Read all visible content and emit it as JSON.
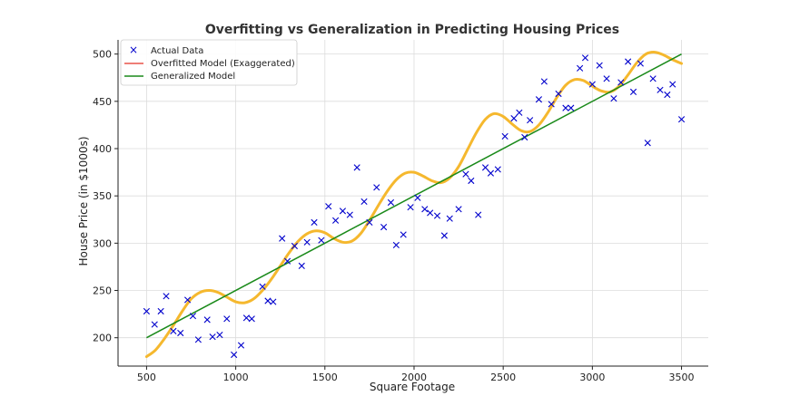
{
  "chart_data": {
    "type": "scatter",
    "title": "Overfitting vs Generalization in Predicting Housing Prices",
    "xlabel": "Square Footage",
    "ylabel": "House Price (in $1000s)",
    "xlim": [
      340,
      3650
    ],
    "ylim": [
      170,
      515
    ],
    "xticks": [
      500,
      1000,
      1500,
      2000,
      2500,
      3000,
      3500
    ],
    "yticks": [
      200,
      250,
      300,
      350,
      400,
      450,
      500
    ],
    "grid": true,
    "legend_position": "top-left",
    "colors": {
      "points": "#0000cc",
      "overfit": "#f5b82e",
      "overfit_legend": "#e8534a",
      "general": "#1a8a1a"
    },
    "series": [
      {
        "name": "Actual Data",
        "kind": "scatter",
        "x": [
          500,
          545,
          580,
          610,
          650,
          690,
          730,
          760,
          790,
          840,
          870,
          910,
          950,
          990,
          1030,
          1060,
          1090,
          1150,
          1180,
          1210,
          1260,
          1290,
          1330,
          1370,
          1400,
          1440,
          1480,
          1520,
          1560,
          1600,
          1640,
          1680,
          1720,
          1750,
          1790,
          1830,
          1870,
          1900,
          1940,
          1980,
          2020,
          2060,
          2090,
          2130,
          2170,
          2200,
          2250,
          2290,
          2320,
          2360,
          2400,
          2430,
          2470,
          2510,
          2560,
          2590,
          2620,
          2650,
          2700,
          2730,
          2770,
          2810,
          2850,
          2880,
          2930,
          2960,
          3000,
          3040,
          3080,
          3120,
          3160,
          3200,
          3230,
          3270,
          3310,
          3340,
          3380,
          3420,
          3450,
          3500
        ],
        "y": [
          228,
          214,
          228,
          244,
          207,
          205,
          240,
          223,
          198,
          219,
          201,
          203,
          220,
          182,
          192,
          221,
          220,
          254,
          239,
          238,
          305,
          281,
          297,
          276,
          301,
          322,
          303,
          339,
          324,
          334,
          330,
          380,
          344,
          322,
          359,
          317,
          343,
          298,
          309,
          338,
          348,
          336,
          332,
          329,
          308,
          326,
          336,
          373,
          366,
          330,
          380,
          374,
          378,
          413,
          432,
          438,
          412,
          430,
          452,
          471,
          447,
          458,
          443,
          443,
          485,
          496,
          468,
          488,
          474,
          453,
          470,
          492,
          460,
          490,
          406,
          474,
          462,
          457,
          468,
          431
        ]
      },
      {
        "name": "Overfitted Model (Exaggerated)",
        "kind": "line",
        "x": [
          500,
          550,
          600,
          650,
          700,
          750,
          800,
          850,
          900,
          950,
          1000,
          1050,
          1100,
          1150,
          1200,
          1250,
          1300,
          1350,
          1400,
          1450,
          1500,
          1550,
          1600,
          1650,
          1700,
          1750,
          1800,
          1850,
          1900,
          1950,
          2000,
          2050,
          2100,
          2150,
          2200,
          2250,
          2300,
          2350,
          2400,
          2450,
          2500,
          2550,
          2600,
          2650,
          2700,
          2750,
          2800,
          2850,
          2900,
          2950,
          3000,
          3050,
          3100,
          3150,
          3200,
          3250,
          3300,
          3350,
          3400,
          3450,
          3500
        ],
        "y": [
          180,
          187,
          199,
          213,
          228,
          241,
          248,
          250,
          248,
          243,
          238,
          237,
          241,
          250,
          262,
          276,
          290,
          302,
          310,
          313,
          311,
          305,
          301,
          302,
          310,
          324,
          340,
          355,
          367,
          374,
          375,
          371,
          366,
          364,
          369,
          381,
          399,
          417,
          431,
          437,
          434,
          426,
          419,
          418,
          425,
          438,
          454,
          467,
          473,
          472,
          466,
          461,
          460,
          466,
          478,
          491,
          500,
          502,
          499,
          494,
          490
        ]
      },
      {
        "name": "Generalized Model",
        "kind": "line",
        "x": [
          500,
          3500
        ],
        "y": [
          200,
          500
        ]
      }
    ]
  }
}
